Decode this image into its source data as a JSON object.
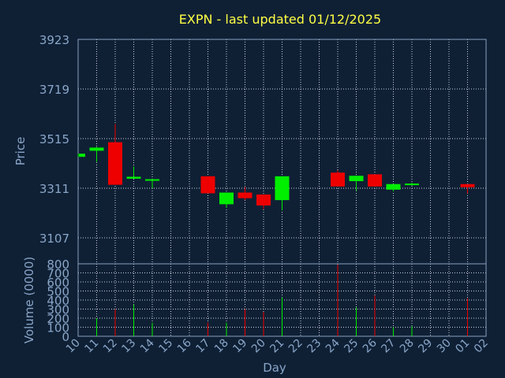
{
  "chart_data": {
    "type": "candlestick",
    "title": "EXPN - last updated 01/12/2025",
    "xlabel": "Day",
    "price_panel": {
      "ylabel": "Price",
      "ylim": [
        3000,
        3923
      ],
      "yticks": [
        3107,
        3311,
        3515,
        3719,
        3923
      ]
    },
    "volume_panel": {
      "ylabel": "Volume (0000)",
      "ylim": [
        0,
        800
      ],
      "yticks": [
        0,
        100,
        200,
        300,
        400,
        500,
        600,
        700,
        800
      ]
    },
    "x_tick_labels": [
      "10",
      "11",
      "12",
      "13",
      "14",
      "15",
      "16",
      "17",
      "18",
      "19",
      "20",
      "21",
      "22",
      "23",
      "24",
      "25",
      "26",
      "27",
      "28",
      "29",
      "30",
      "01",
      "02"
    ],
    "candles": [
      {
        "day": "10",
        "open": 3440,
        "close": 3453,
        "high": 3453,
        "low": 3440,
        "volume": 0
      },
      {
        "day": "11",
        "open": 3465,
        "close": 3478,
        "high": 3480,
        "low": 3420,
        "volume": 200
      },
      {
        "day": "12",
        "open": 3500,
        "close": 3325,
        "high": 3575,
        "low": 3325,
        "volume": 300
      },
      {
        "day": "13",
        "open": 3350,
        "close": 3358,
        "high": 3400,
        "low": 3350,
        "volume": 350
      },
      {
        "day": "14",
        "open": 3342,
        "close": 3348,
        "high": 3348,
        "low": 3310,
        "volume": 150
      },
      {
        "day": "17",
        "open": 3360,
        "close": 3290,
        "high": 3360,
        "low": 3290,
        "volume": 150
      },
      {
        "day": "18",
        "open": 3245,
        "close": 3293,
        "high": 3293,
        "low": 3230,
        "volume": 150
      },
      {
        "day": "19",
        "open": 3293,
        "close": 3270,
        "high": 3315,
        "low": 3262,
        "volume": 300
      },
      {
        "day": "20",
        "open": 3285,
        "close": 3240,
        "high": 3285,
        "low": 3225,
        "volume": 270
      },
      {
        "day": "21",
        "open": 3262,
        "close": 3360,
        "high": 3360,
        "low": 3220,
        "volume": 430
      },
      {
        "day": "24",
        "open": 3375,
        "close": 3318,
        "high": 3385,
        "low": 3318,
        "volume": 790
      },
      {
        "day": "25",
        "open": 3340,
        "close": 3362,
        "high": 3362,
        "low": 3300,
        "volume": 320
      },
      {
        "day": "26",
        "open": 3368,
        "close": 3318,
        "high": 3368,
        "low": 3318,
        "volume": 450
      },
      {
        "day": "27",
        "open": 3305,
        "close": 3328,
        "high": 3328,
        "low": 3298,
        "volume": 100
      },
      {
        "day": "28",
        "open": 3325,
        "close": 3330,
        "high": 3333,
        "low": 3322,
        "volume": 110
      },
      {
        "day": "01",
        "open": 3328,
        "close": 3315,
        "high": 3328,
        "low": 3290,
        "volume": 420
      }
    ],
    "colors": {
      "background": "#0f2035",
      "plot_background": "#0f2035",
      "grid": "#c8d0dc",
      "frame": "#8aa0c0",
      "text": "#8aa6c8",
      "title": "#ffff44",
      "up": "#00ee00",
      "down": "#ee0000"
    },
    "grid": true
  }
}
